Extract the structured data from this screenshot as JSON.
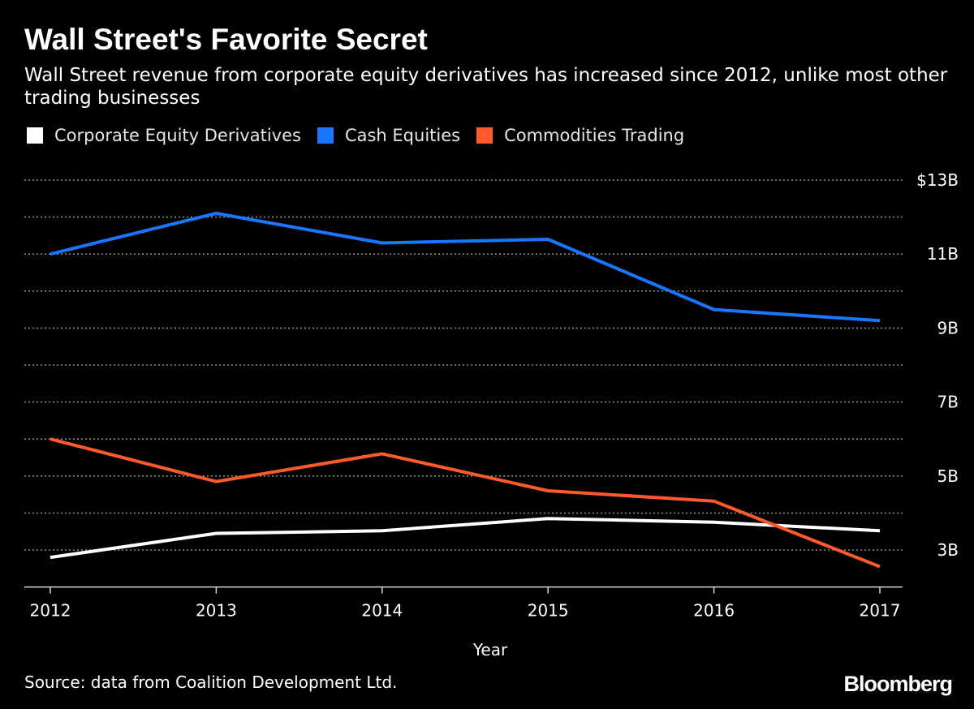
{
  "header": {
    "title": "Wall Street's Favorite Secret",
    "subtitle": "Wall Street revenue from corporate equity derivatives has increased since 2012, unlike most other trading businesses"
  },
  "footer": {
    "source": "Source: data from Coalition Development Ltd.",
    "logo": "Bloomberg"
  },
  "chart_data": {
    "type": "line",
    "title": "Wall Street's Favorite Secret",
    "subtitle": "Wall Street revenue from corporate equity derivatives has increased since 2012, unlike most other trading businesses",
    "x": [
      2012,
      2013,
      2014,
      2015,
      2016,
      2017
    ],
    "xlabel": "Year",
    "ylabel": "",
    "ylim": [
      2.0,
      13
    ],
    "y_ticks": [
      3,
      5,
      7,
      9,
      11,
      13
    ],
    "y_tick_labels": [
      "3B",
      "5B",
      "7B",
      "9B",
      "11B",
      "$13B"
    ],
    "minor_gridlines": [
      4,
      6,
      8,
      10,
      12
    ],
    "grid": true,
    "y_axis_position": "right",
    "legend_position": "top-left",
    "series": [
      {
        "name": "Corporate Equity Derivatives",
        "color": "#ffffff",
        "values": [
          2.8,
          3.45,
          3.52,
          3.85,
          3.75,
          3.52
        ]
      },
      {
        "name": "Cash Equities",
        "color": "#1a75ff",
        "values": [
          11.0,
          12.1,
          11.3,
          11.4,
          9.5,
          9.2
        ]
      },
      {
        "name": "Commodities Trading",
        "color": "#ff5a2c",
        "values": [
          6.0,
          4.85,
          5.6,
          4.6,
          4.32,
          2.55
        ]
      }
    ]
  }
}
